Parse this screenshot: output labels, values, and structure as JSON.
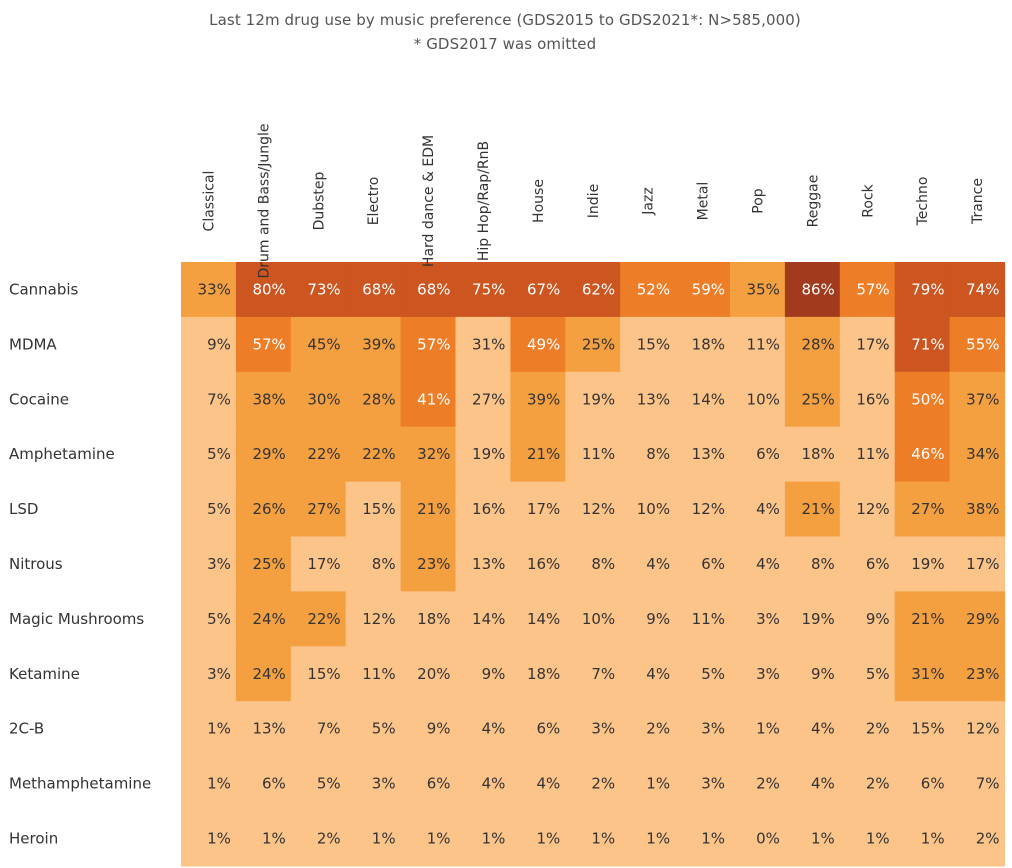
{
  "title": {
    "line1": "Last 12m drug use by music preference (GDS2015 to GDS2021*: N>585,000)",
    "line2": "* GDS2017 was omitted"
  },
  "colors": {
    "level1": "#fdc48a",
    "level2": "#f5a040",
    "level3": "#ee7d27",
    "level4": "#cd5520",
    "level5": "#a23a1e",
    "text_dark": "#333333",
    "text_light": "#ffffff"
  },
  "chart_data": {
    "type": "heatmap",
    "title": "Last 12m drug use by music preference (GDS2015 to GDS2021*: N>585,000)",
    "subtitle": "* GDS2017 was omitted",
    "unit": "%",
    "columns": [
      "Classical",
      "Drum and Bass/Jungle",
      "Dubstep",
      "Electro",
      "Hard dance & EDM",
      "Hip Hop/Rap/RnB",
      "House",
      "Indie",
      "Jazz",
      "Metal",
      "Pop",
      "Reggae",
      "Rock",
      "Techno",
      "Trance"
    ],
    "rows": [
      "Cannabis",
      "MDMA",
      "Cocaine",
      "Amphetamine",
      "LSD",
      "Nitrous",
      "Magic Mushrooms",
      "Ketamine",
      "2C-B",
      "Methamphetamine",
      "Heroin"
    ],
    "values": [
      [
        33,
        80,
        73,
        68,
        68,
        75,
        67,
        62,
        52,
        59,
        35,
        86,
        57,
        79,
        74
      ],
      [
        9,
        57,
        45,
        39,
        57,
        31,
        49,
        25,
        15,
        18,
        11,
        28,
        17,
        71,
        55
      ],
      [
        7,
        38,
        30,
        28,
        41,
        27,
        39,
        19,
        13,
        14,
        10,
        25,
        16,
        50,
        37
      ],
      [
        5,
        29,
        22,
        22,
        32,
        19,
        21,
        11,
        8,
        13,
        6,
        18,
        11,
        46,
        34
      ],
      [
        5,
        26,
        27,
        15,
        21,
        16,
        17,
        12,
        10,
        12,
        4,
        21,
        12,
        27,
        38
      ],
      [
        3,
        25,
        17,
        8,
        23,
        13,
        16,
        8,
        4,
        6,
        4,
        8,
        6,
        19,
        17
      ],
      [
        5,
        24,
        22,
        12,
        18,
        14,
        14,
        10,
        9,
        11,
        3,
        19,
        9,
        21,
        29
      ],
      [
        3,
        24,
        15,
        11,
        20,
        9,
        18,
        7,
        4,
        5,
        3,
        9,
        5,
        31,
        23
      ],
      [
        1,
        13,
        7,
        5,
        9,
        4,
        6,
        3,
        2,
        3,
        1,
        4,
        2,
        15,
        12
      ],
      [
        1,
        6,
        5,
        3,
        6,
        4,
        4,
        2,
        1,
        3,
        2,
        4,
        2,
        6,
        7
      ],
      [
        1,
        1,
        2,
        1,
        1,
        1,
        1,
        1,
        1,
        1,
        0,
        1,
        1,
        1,
        2
      ]
    ],
    "color_levels": [
      [
        2,
        4,
        4,
        4,
        4,
        4,
        4,
        4,
        3,
        3,
        2,
        5,
        3,
        4,
        4
      ],
      [
        1,
        3,
        2,
        2,
        3,
        1,
        3,
        2,
        1,
        1,
        1,
        2,
        1,
        4,
        3
      ],
      [
        1,
        2,
        2,
        2,
        3,
        1,
        2,
        1,
        1,
        1,
        1,
        2,
        1,
        3,
        2
      ],
      [
        1,
        2,
        2,
        2,
        2,
        1,
        2,
        1,
        1,
        1,
        1,
        1,
        1,
        3,
        2
      ],
      [
        1,
        2,
        2,
        1,
        2,
        1,
        1,
        1,
        1,
        1,
        1,
        2,
        1,
        2,
        2
      ],
      [
        1,
        2,
        1,
        1,
        2,
        1,
        1,
        1,
        1,
        1,
        1,
        1,
        1,
        1,
        1
      ],
      [
        1,
        2,
        2,
        1,
        1,
        1,
        1,
        1,
        1,
        1,
        1,
        1,
        1,
        2,
        2
      ],
      [
        1,
        2,
        1,
        1,
        1,
        1,
        1,
        1,
        1,
        1,
        1,
        1,
        1,
        2,
        2
      ],
      [
        1,
        1,
        1,
        1,
        1,
        1,
        1,
        1,
        1,
        1,
        1,
        1,
        1,
        1,
        1
      ],
      [
        1,
        1,
        1,
        1,
        1,
        1,
        1,
        1,
        1,
        1,
        1,
        1,
        1,
        1,
        1
      ],
      [
        1,
        1,
        1,
        1,
        1,
        1,
        1,
        1,
        1,
        1,
        1,
        1,
        1,
        1,
        1
      ]
    ]
  }
}
